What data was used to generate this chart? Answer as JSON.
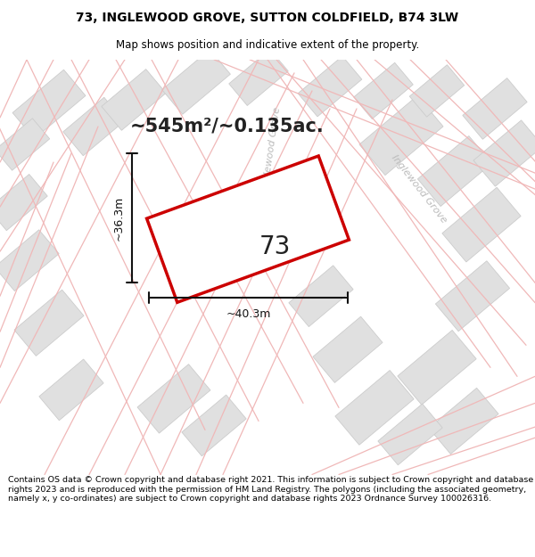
{
  "title_line1": "73, INGLEWOOD GROVE, SUTTON COLDFIELD, B74 3LW",
  "title_line2": "Map shows position and indicative extent of the property.",
  "area_text": "~545m²/~0.135ac.",
  "width_label": "~40.3m",
  "height_label": "~36.3m",
  "plot_number": "73",
  "footer_text": "Contains OS data © Crown copyright and database right 2021. This information is subject to Crown copyright and database rights 2023 and is reproduced with the permission of HM Land Registry. The polygons (including the associated geometry, namely x, y co-ordinates) are subject to Crown copyright and database rights 2023 Ordnance Survey 100026316.",
  "map_bg": "#f5f5f5",
  "plot_color": "#cc0000",
  "plot_fill": "#ffffff",
  "building_color": "#e0e0e0",
  "building_edge": "#cccccc",
  "road_line_color": "#f0b8b8",
  "road_label_color": "#bbbbbb",
  "dim_color": "#111111",
  "title_bold": true,
  "title_fontsize": 10,
  "subtitle_fontsize": 8.5,
  "area_fontsize": 15,
  "plot_num_fontsize": 20,
  "dim_fontsize": 9,
  "road_label_fontsize": 8
}
